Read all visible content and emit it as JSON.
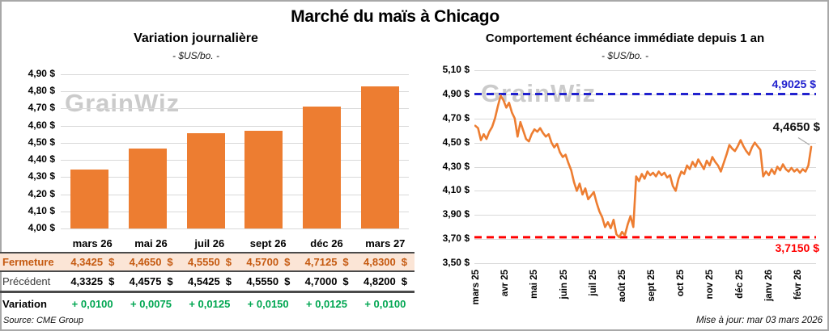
{
  "page": {
    "title": "Marché du maïs à Chicago",
    "watermark": "GrainWiz",
    "source": "Source: CME Group",
    "updated": "Mise à jour: mar 03 mars 2026"
  },
  "colors": {
    "bar_orange": "#ED7D31",
    "line_orange": "#ED7D31",
    "fermeture_text": "#C55A11",
    "fermeture_bg": "#FBE5D6",
    "variation_green": "#00A651",
    "resistance_blue": "#2121CE",
    "support_red": "#FF0000",
    "gridline": "#D9D9D9"
  },
  "chart_data": [
    {
      "type": "bar",
      "title": "Variation journalière",
      "subtitle": "- $US/bo. -",
      "categories": [
        "mars 26",
        "mai 26",
        "juil 26",
        "sept 26",
        "déc 26",
        "mars 27"
      ],
      "values": [
        4.3425,
        4.465,
        4.555,
        4.57,
        4.7125,
        4.83
      ],
      "ylim": [
        4.0,
        4.9
      ],
      "ytick_step": 0.1,
      "ytick_labels": [
        "4,00 $",
        "4,10 $",
        "4,20 $",
        "4,30 $",
        "4,40 $",
        "4,50 $",
        "4,60 $",
        "4,70 $",
        "4,80 $",
        "4,90 $"
      ],
      "bar_color": "#ED7D31",
      "grid": true
    },
    {
      "type": "line",
      "title": "Comportement échéance immédiate depuis 1 an",
      "subtitle": "- $US/bo. -",
      "x_labels": [
        "mars 25",
        "avr 25",
        "mai 25",
        "juin 25",
        "juil 25",
        "août 25",
        "sept 25",
        "oct 25",
        "nov 25",
        "déc 25",
        "janv 26",
        "févr 26"
      ],
      "ylim": [
        3.5,
        5.1
      ],
      "ytick_step": 0.2,
      "ytick_labels": [
        "3,50 $",
        "3,70 $",
        "3,90 $",
        "4,10 $",
        "4,30 $",
        "4,50 $",
        "4,70 $",
        "4,90 $",
        "5,10 $"
      ],
      "line_color": "#ED7D31",
      "grid": true,
      "legend_position": "none",
      "values": [
        4.64,
        4.62,
        4.52,
        4.57,
        4.53,
        4.59,
        4.63,
        4.7,
        4.8,
        4.89,
        4.85,
        4.79,
        4.83,
        4.75,
        4.7,
        4.55,
        4.67,
        4.6,
        4.53,
        4.51,
        4.57,
        4.61,
        4.59,
        4.62,
        4.58,
        4.55,
        4.57,
        4.5,
        4.46,
        4.49,
        4.42,
        4.38,
        4.4,
        4.33,
        4.27,
        4.17,
        4.1,
        4.16,
        4.07,
        4.12,
        4.03,
        4.06,
        4.09,
        4.0,
        3.93,
        3.88,
        3.8,
        3.84,
        3.79,
        3.86,
        3.74,
        3.715,
        3.76,
        3.73,
        3.82,
        3.89,
        3.8,
        4.22,
        4.18,
        4.24,
        4.2,
        4.26,
        4.23,
        4.25,
        4.22,
        4.26,
        4.23,
        4.25,
        4.21,
        4.23,
        4.14,
        4.1,
        4.2,
        4.26,
        4.24,
        4.31,
        4.28,
        4.34,
        4.3,
        4.36,
        4.32,
        4.28,
        4.35,
        4.31,
        4.38,
        4.34,
        4.31,
        4.26,
        4.33,
        4.4,
        4.48,
        4.45,
        4.43,
        4.47,
        4.52,
        4.47,
        4.43,
        4.4,
        4.46,
        4.5,
        4.47,
        4.44,
        4.22,
        4.26,
        4.23,
        4.28,
        4.24,
        4.3,
        4.27,
        4.32,
        4.28,
        4.26,
        4.29,
        4.26,
        4.28,
        4.25,
        4.28,
        4.26,
        4.31,
        4.465
      ],
      "hlines": [
        {
          "value": 4.9025,
          "label": "4,9025 $",
          "color": "#2121CE",
          "style": "dashed"
        },
        {
          "value": 3.715,
          "label": "3,7150 $",
          "color": "#FF0000",
          "style": "dashed"
        }
      ],
      "last_point": {
        "value": 4.465,
        "label": "4,4650 $"
      }
    }
  ],
  "table": {
    "columns": [
      "mars 26",
      "mai 26",
      "juil 26",
      "sept 26",
      "déc 26",
      "mars 27"
    ],
    "rows": [
      {
        "label": "Fermeture",
        "style": "fermeture",
        "unit": "$",
        "values": [
          "4,3425",
          "4,4650",
          "4,5550",
          "4,5700",
          "4,7125",
          "4,8300"
        ]
      },
      {
        "label": "Précédent",
        "style": "precedent",
        "unit": "$",
        "values": [
          "4,3325",
          "4,4575",
          "4,5425",
          "4,5550",
          "4,7000",
          "4,8200"
        ]
      },
      {
        "label": "Variation",
        "style": "variation",
        "unit": "",
        "values": [
          "+ 0,0100",
          "+ 0,0075",
          "+ 0,0125",
          "+ 0,0150",
          "+ 0,0125",
          "+ 0,0100"
        ]
      }
    ]
  }
}
